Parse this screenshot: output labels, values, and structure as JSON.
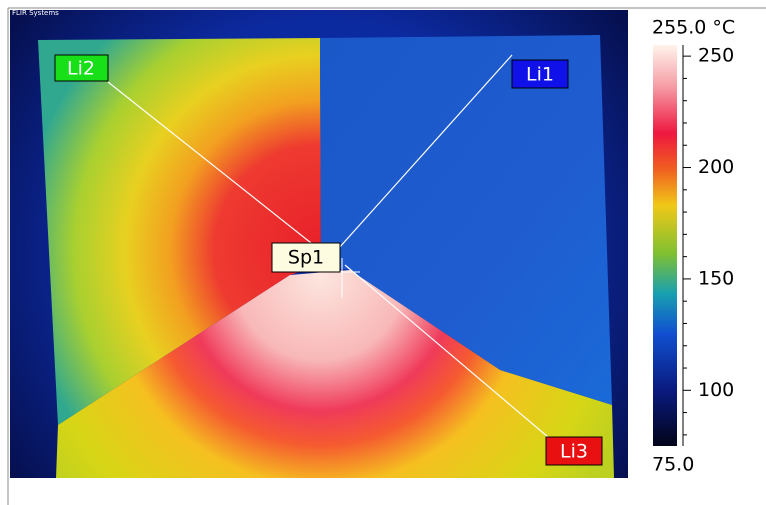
{
  "header": {
    "source": "FLIR Systems"
  },
  "markers": {
    "li2": "Li2",
    "li1": "Li1",
    "li3": "Li3",
    "sp1": "Sp1"
  },
  "colorbar": {
    "max": {
      "value": 255,
      "label": "255.0 °C"
    },
    "min": {
      "value": 75,
      "label": "75.0"
    },
    "ticks": [
      100,
      150,
      200,
      250
    ]
  }
}
